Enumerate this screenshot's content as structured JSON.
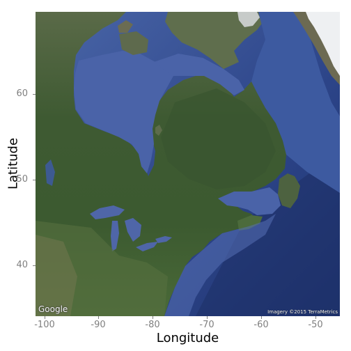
{
  "map": {
    "attribution_logo": "Google",
    "attribution_text": "Imagery ©2015 TerraMetrics",
    "extent": {
      "lon": [
        -101.5,
        -45.5
      ],
      "lat": [
        34,
        69.5
      ]
    },
    "colors": {
      "ocean": "#3f5a9c",
      "deep_ocean": "#233a7a",
      "land": "#4f6a3a",
      "tundra": "#6e6f4c",
      "forest": "#2f4c2a",
      "ice": "#e9ecef"
    }
  },
  "axes": {
    "xlabel": "Longitude",
    "ylabel": "Latitude",
    "x_ticks": [
      "-100",
      "-90",
      "-80",
      "-70",
      "-60",
      "-50"
    ],
    "y_ticks": [
      "40",
      "50",
      "60"
    ]
  }
}
